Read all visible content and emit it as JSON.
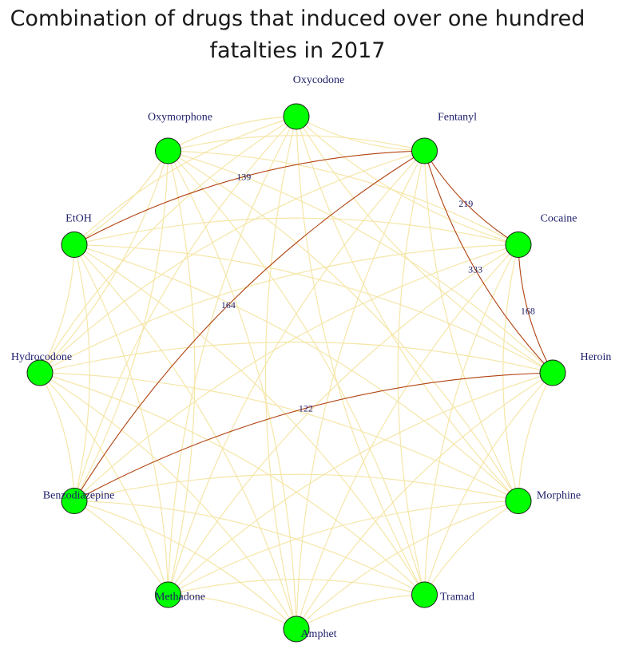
{
  "title_line1": "Combination of drugs that induced over one hundred",
  "title_line2": "fatalties in 2017",
  "colors": {
    "node_fill": "#00ff00",
    "node_stroke": "#1a1a1a",
    "edge_light": "#f5e6a8",
    "edge_strong": "#b0420f",
    "label": "#1f1f6b"
  },
  "nodes": [
    "Oxycodone",
    "Fentanyl",
    "Cocaine",
    "Heroin",
    "Morphine",
    "Tramad",
    "Amphet",
    "Methadone",
    "Benzodiazepine",
    "Hydrocodone",
    "EtOH",
    "Oxymorphone"
  ],
  "edges_labeled": [
    {
      "source": "Fentanyl",
      "target": "Cocaine",
      "weight": "219"
    },
    {
      "source": "Fentanyl",
      "target": "Heroin",
      "weight": "333"
    },
    {
      "source": "Cocaine",
      "target": "Heroin",
      "weight": "168"
    },
    {
      "source": "Fentanyl",
      "target": "EtOH",
      "weight": "139"
    },
    {
      "source": "Fentanyl",
      "target": "Benzodiazepine",
      "weight": "164"
    },
    {
      "source": "Heroin",
      "target": "Benzodiazepine",
      "weight": "122"
    }
  ]
}
